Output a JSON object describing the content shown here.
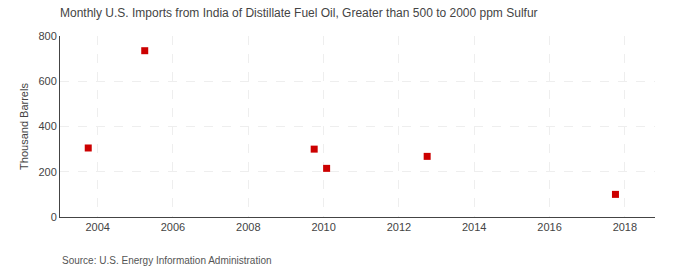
{
  "chart_data": {
    "type": "scatter",
    "title": "Monthly U.S. Imports from India of Distillate Fuel Oil, Greater than 500 to 2000 ppm Sulfur",
    "ylabel": "Thousand Barrels",
    "source": "Source: U.S. Energy Information Administration",
    "x": [
      2003.75,
      2005.25,
      2009.75,
      2010.08,
      2012.75,
      2017.75
    ],
    "values": [
      305,
      735,
      300,
      215,
      268,
      100
    ],
    "color": "#cc0000",
    "marker": "square",
    "xlim": [
      2003.0,
      2018.8
    ],
    "ylim": [
      0,
      800
    ],
    "xticks": [
      2004,
      2006,
      2008,
      2010,
      2012,
      2014,
      2016,
      2018
    ],
    "yticks": [
      0,
      200,
      400,
      600,
      800
    ],
    "grid": true
  }
}
